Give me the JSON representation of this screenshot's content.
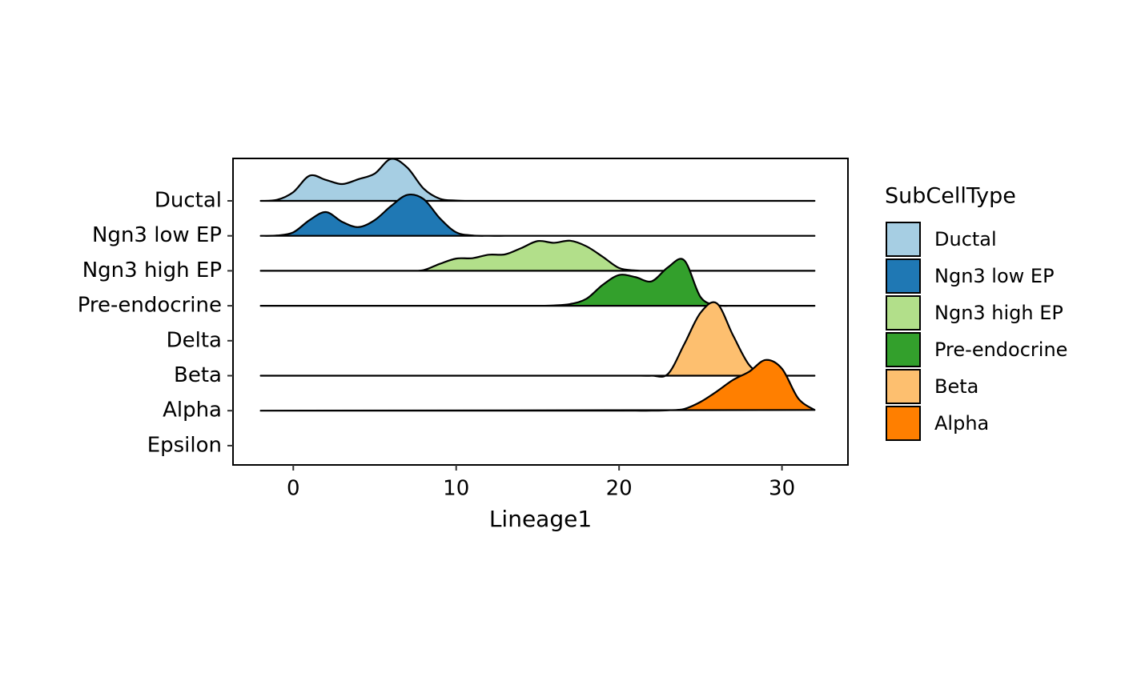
{
  "chart_data": {
    "type": "ridgeline",
    "x_label": "Lineage1",
    "legend_title": "SubCellType",
    "categories": [
      "Ductal",
      "Ngn3 low EP",
      "Ngn3 high EP",
      "Pre-endocrine",
      "Delta",
      "Beta",
      "Alpha",
      "Epsilon"
    ],
    "x": [
      -2,
      -1,
      0,
      1,
      2,
      3,
      4,
      5,
      6,
      7,
      8,
      9,
      10,
      11,
      12,
      13,
      14,
      15,
      16,
      17,
      18,
      19,
      20,
      21,
      22,
      23,
      24,
      25,
      26,
      27,
      28,
      29,
      30,
      31,
      32
    ],
    "series": [
      {
        "name": "Ductal",
        "color": "#a6cee3",
        "values": [
          0,
          0.03,
          0.25,
          0.72,
          0.6,
          0.48,
          0.62,
          0.78,
          1.2,
          0.95,
          0.35,
          0.06,
          0.01,
          0,
          0,
          0,
          0,
          0,
          0,
          0,
          0,
          0,
          0,
          0,
          0,
          0,
          0,
          0,
          0,
          0,
          0,
          0,
          0,
          0,
          0
        ]
      },
      {
        "name": "Ngn3 low EP",
        "color": "#1f78b4",
        "values": [
          0,
          0.01,
          0.1,
          0.45,
          0.68,
          0.4,
          0.25,
          0.45,
          0.85,
          1.17,
          1.05,
          0.5,
          0.1,
          0.01,
          0,
          0,
          0,
          0,
          0,
          0,
          0,
          0,
          0,
          0,
          0,
          0,
          0,
          0,
          0,
          0,
          0,
          0,
          0,
          0,
          0
        ]
      },
      {
        "name": "Ngn3 high EP",
        "color": "#b2df8a",
        "values": [
          0,
          0,
          0,
          0,
          0,
          0,
          0,
          0,
          0,
          0,
          0.02,
          0.2,
          0.35,
          0.36,
          0.46,
          0.47,
          0.65,
          0.85,
          0.8,
          0.86,
          0.7,
          0.4,
          0.08,
          0.01,
          0,
          0,
          0,
          0,
          0,
          0,
          0,
          0,
          0,
          0,
          0
        ]
      },
      {
        "name": "Pre-endocrine",
        "color": "#33a02c",
        "values": [
          0,
          0,
          0,
          0,
          0,
          0,
          0,
          0,
          0,
          0,
          0,
          0,
          0,
          0,
          0,
          0,
          0,
          0,
          0.01,
          0.05,
          0.2,
          0.6,
          0.88,
          0.82,
          0.7,
          1.1,
          1.3,
          0.25,
          0.02,
          0,
          0,
          0,
          0,
          0,
          0
        ]
      },
      {
        "name": "Beta",
        "color": "#fdbf6f",
        "values": [
          0,
          0,
          0,
          0,
          0,
          0,
          0,
          0,
          0,
          0,
          0,
          0,
          0,
          0,
          0,
          0,
          0,
          0,
          0,
          0,
          0,
          0,
          0,
          0,
          0,
          0.05,
          0.9,
          1.8,
          2.07,
          1.15,
          0.3,
          0.02,
          0,
          0,
          0
        ]
      },
      {
        "name": "Alpha",
        "color": "#ff7f00",
        "values": [
          0,
          0,
          0,
          0,
          0,
          0,
          0,
          0,
          0,
          0,
          0,
          0,
          0,
          0,
          0,
          0,
          0,
          0,
          0,
          0,
          0,
          0,
          0,
          0,
          0,
          0.01,
          0.05,
          0.25,
          0.55,
          0.88,
          1.12,
          1.45,
          1.2,
          0.35,
          0.02
        ]
      }
    ],
    "xlim": [
      -3.7,
      34.05
    ],
    "xticks": [
      0,
      10,
      20,
      30
    ]
  }
}
